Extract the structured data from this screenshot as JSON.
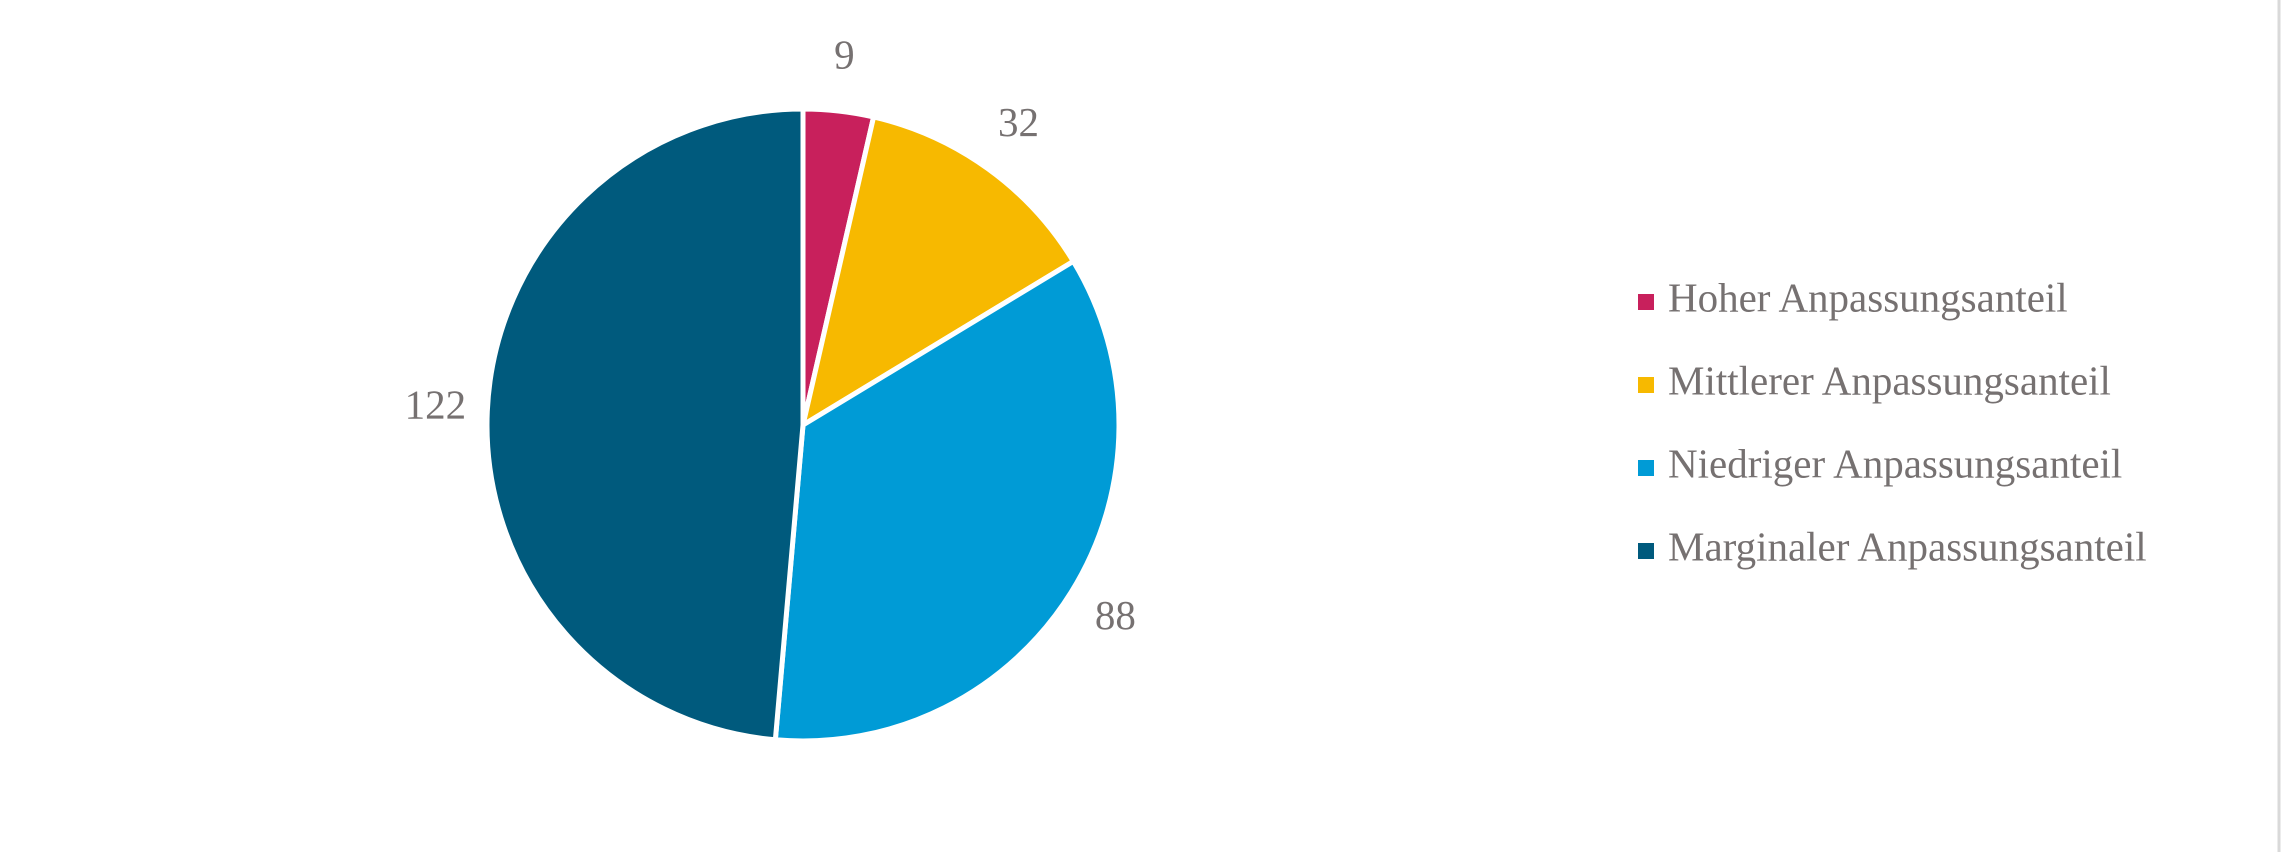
{
  "chart_data": {
    "type": "pie",
    "categories": [
      "Hoher Anpassungsanteil",
      "Mittlerer Anpassungsanteil",
      "Niedriger Anpassungsanteil",
      "Marginaler Anpassungsanteil"
    ],
    "values": [
      9,
      32,
      88,
      122
    ],
    "colors": [
      "#c8205c",
      "#f7b900",
      "#009bd6",
      "#005a7d"
    ],
    "legend": "right"
  }
}
